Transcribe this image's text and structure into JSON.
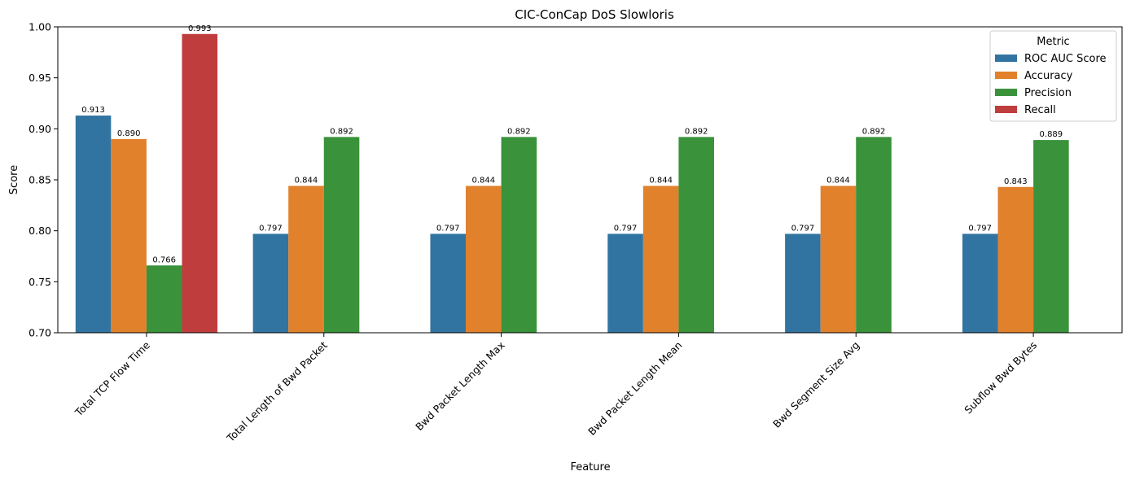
{
  "chart_data": {
    "type": "bar",
    "title": "CIC-ConCap DoS Slowloris",
    "xlabel": "Feature",
    "ylabel": "Score",
    "ylim": [
      0.7,
      1.0
    ],
    "yticks": [
      0.7,
      0.75,
      0.8,
      0.85,
      0.9,
      0.95,
      1.0
    ],
    "ytick_labels": [
      "0.70",
      "0.75",
      "0.80",
      "0.85",
      "0.90",
      "0.95",
      "1.00"
    ],
    "categories": [
      "Total TCP Flow Time",
      "Total Length of Bwd Packet",
      "Bwd Packet Length Max",
      "Bwd Packet Length Mean",
      "Bwd Segment Size Avg",
      "Subflow Bwd Bytes"
    ],
    "series": [
      {
        "name": "ROC AUC Score",
        "color": "#3274a1",
        "values": [
          0.913,
          0.797,
          0.797,
          0.797,
          0.797,
          0.797
        ],
        "labels": [
          "0.913",
          "0.797",
          "0.797",
          "0.797",
          "0.797",
          "0.797"
        ]
      },
      {
        "name": "Accuracy",
        "color": "#e1812c",
        "values": [
          0.89,
          0.844,
          0.844,
          0.844,
          0.844,
          0.843
        ],
        "labels": [
          "0.890",
          "0.844",
          "0.844",
          "0.844",
          "0.844",
          "0.843"
        ]
      },
      {
        "name": "Precision",
        "color": "#3a923a",
        "values": [
          0.766,
          0.892,
          0.892,
          0.892,
          0.892,
          0.889
        ],
        "labels": [
          "0.766",
          "0.892",
          "0.892",
          "0.892",
          "0.892",
          "0.889"
        ]
      },
      {
        "name": "Recall",
        "color": "#c03d3e",
        "values": [
          0.993,
          null,
          null,
          null,
          null,
          null
        ],
        "labels": [
          "0.993",
          "",
          "",
          "",
          "",
          ""
        ]
      }
    ],
    "legend": {
      "title": "Metric",
      "placement": "top-right"
    },
    "grid": false
  }
}
